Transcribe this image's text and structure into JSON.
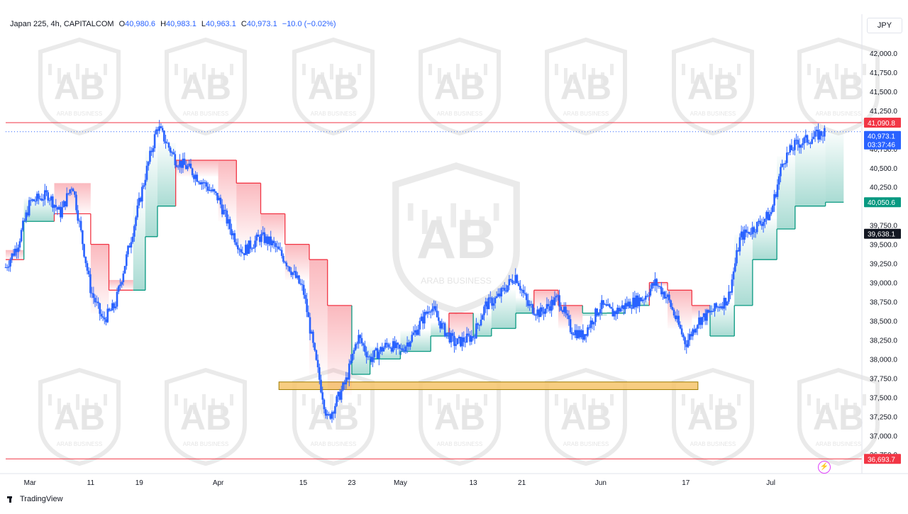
{
  "header": {
    "symbol": "Japan 225, 4h, CAPITALCOM",
    "open_label": "O",
    "open": "40,980.6",
    "high_label": "H",
    "high": "40,983.1",
    "low_label": "L",
    "low": "40,963.1",
    "close_label": "C",
    "close": "40,973.1",
    "change": "−10.0 (−0.02%)"
  },
  "currency": "JPY",
  "footer": {
    "brand": "TradingView"
  },
  "watermark": {
    "text": "ARAB BUSINESS"
  },
  "colors": {
    "candle": "#2962ff",
    "resistance_line": "#f23645",
    "support_zone_fill": "#f6c46b",
    "trail_down": "#f23645",
    "trail_up": "#089981",
    "last_price_bg": "#2962ff",
    "level_bg": "#131722"
  },
  "chart_data": {
    "type": "candlestick",
    "title": "Japan 225, 4h, CAPITALCOM",
    "x_tick_labels": [
      "Mar",
      "11",
      "19",
      "Apr",
      "15",
      "23",
      "May",
      "13",
      "21",
      "Jun",
      "17",
      "Jul"
    ],
    "y_ticks": [
      "42,000.0",
      "41,750.0",
      "41,500.0",
      "41,250.0",
      "40,750.0",
      "40,500.0",
      "40,250.0",
      "39,750.0",
      "39,500.0",
      "39,250.0",
      "39,000.0",
      "38,750.0",
      "38,500.0",
      "38,250.0",
      "38,000.0",
      "37,750.0",
      "37,500.0",
      "37,250.0",
      "37,000.0",
      "36,750.0"
    ],
    "ylim": [
      36650,
      42250
    ],
    "price_labels": [
      {
        "value": 41090.8,
        "text": "41,090.8",
        "role": "resistance"
      },
      {
        "value": 40973.1,
        "text": "40,973.1",
        "role": "last",
        "countdown": "03:37:46"
      },
      {
        "value": 40050.6,
        "text": "40,050.6",
        "role": "trailing-stop"
      },
      {
        "value": 39638.1,
        "text": "39,638.1",
        "role": "level"
      },
      {
        "value": 36693.7,
        "text": "36,693.7",
        "role": "support"
      }
    ],
    "horizontal_lines": [
      {
        "value": 41090.8,
        "style": "solid",
        "color": "#f23645"
      },
      {
        "value": 40973.1,
        "style": "dotted",
        "color": "#2962ff"
      },
      {
        "value": 36693.7,
        "style": "solid",
        "color": "#f23645"
      }
    ],
    "zones": [
      {
        "from": "2024-04-11",
        "to": "2024-06-19",
        "y_low": 37600,
        "y_high": 37700,
        "color": "#f6c46b"
      }
    ],
    "close_path": [
      [
        "2024-02-26",
        39200
      ],
      [
        "2024-02-28",
        39500
      ],
      [
        "2024-03-01",
        40050
      ],
      [
        "2024-03-04",
        40150
      ],
      [
        "2024-03-06",
        39900
      ],
      [
        "2024-03-08",
        40300
      ],
      [
        "2024-03-11",
        38900
      ],
      [
        "2024-03-13",
        38500
      ],
      [
        "2024-03-15",
        38700
      ],
      [
        "2024-03-18",
        39700
      ],
      [
        "2024-03-20",
        40400
      ],
      [
        "2024-03-22",
        41050
      ],
      [
        "2024-03-25",
        40600
      ],
      [
        "2024-03-27",
        40500
      ],
      [
        "2024-03-29",
        40350
      ],
      [
        "2024-04-01",
        40100
      ],
      [
        "2024-04-03",
        39700
      ],
      [
        "2024-04-05",
        39400
      ],
      [
        "2024-04-08",
        39600
      ],
      [
        "2024-04-10",
        39500
      ],
      [
        "2024-04-12",
        39300
      ],
      [
        "2024-04-15",
        38900
      ],
      [
        "2024-04-17",
        38000
      ],
      [
        "2024-04-19",
        37200
      ],
      [
        "2024-04-22",
        37700
      ],
      [
        "2024-04-24",
        38300
      ],
      [
        "2024-04-26",
        38000
      ],
      [
        "2024-04-29",
        38200
      ],
      [
        "2024-05-01",
        38100
      ],
      [
        "2024-05-03",
        38300
      ],
      [
        "2024-05-06",
        38700
      ],
      [
        "2024-05-08",
        38400
      ],
      [
        "2024-05-10",
        38200
      ],
      [
        "2024-05-13",
        38300
      ],
      [
        "2024-05-15",
        38700
      ],
      [
        "2024-05-17",
        38800
      ],
      [
        "2024-05-20",
        39100
      ],
      [
        "2024-05-22",
        38700
      ],
      [
        "2024-05-24",
        38600
      ],
      [
        "2024-05-27",
        38800
      ],
      [
        "2024-05-29",
        38400
      ],
      [
        "2024-05-31",
        38300
      ],
      [
        "2024-06-03",
        38700
      ],
      [
        "2024-06-05",
        38600
      ],
      [
        "2024-06-07",
        38700
      ],
      [
        "2024-06-10",
        38800
      ],
      [
        "2024-06-12",
        39000
      ],
      [
        "2024-06-14",
        38800
      ],
      [
        "2024-06-17",
        38200
      ],
      [
        "2024-06-19",
        38500
      ],
      [
        "2024-06-21",
        38600
      ],
      [
        "2024-06-24",
        38800
      ],
      [
        "2024-06-26",
        39600
      ],
      [
        "2024-06-28",
        39700
      ],
      [
        "2024-07-01",
        39900
      ],
      [
        "2024-07-03",
        40600
      ],
      [
        "2024-07-05",
        40800
      ],
      [
        "2024-07-08",
        40900
      ],
      [
        "2024-07-10",
        40973
      ]
    ],
    "trailing_stop": [
      [
        "2024-02-26",
        39300,
        "down"
      ],
      [
        "2024-02-29",
        39800,
        "up"
      ],
      [
        "2024-03-05",
        39900,
        "down"
      ],
      [
        "2024-03-11",
        39500,
        "down"
      ],
      [
        "2024-03-14",
        38900,
        "down"
      ],
      [
        "2024-03-18",
        38900,
        "up"
      ],
      [
        "2024-03-20",
        39600,
        "up"
      ],
      [
        "2024-03-22",
        40000,
        "up"
      ],
      [
        "2024-03-25",
        40600,
        "down"
      ],
      [
        "2024-04-01",
        40600,
        "down"
      ],
      [
        "2024-04-04",
        40300,
        "down"
      ],
      [
        "2024-04-08",
        39900,
        "down"
      ],
      [
        "2024-04-12",
        39500,
        "down"
      ],
      [
        "2024-04-16",
        39300,
        "down"
      ],
      [
        "2024-04-19",
        38700,
        "down"
      ],
      [
        "2024-04-23",
        37800,
        "up"
      ],
      [
        "2024-04-26",
        38000,
        "up"
      ],
      [
        "2024-05-01",
        38100,
        "up"
      ],
      [
        "2024-05-06",
        38300,
        "up"
      ],
      [
        "2024-05-09",
        38600,
        "down"
      ],
      [
        "2024-05-13",
        38300,
        "up"
      ],
      [
        "2024-05-16",
        38400,
        "up"
      ],
      [
        "2024-05-20",
        38600,
        "up"
      ],
      [
        "2024-05-23",
        38900,
        "down"
      ],
      [
        "2024-05-27",
        38700,
        "down"
      ],
      [
        "2024-05-31",
        38600,
        "up"
      ],
      [
        "2024-06-04",
        38600,
        "up"
      ],
      [
        "2024-06-07",
        38700,
        "up"
      ],
      [
        "2024-06-11",
        39000,
        "down"
      ],
      [
        "2024-06-14",
        38900,
        "down"
      ],
      [
        "2024-06-18",
        38700,
        "down"
      ],
      [
        "2024-06-21",
        38300,
        "up"
      ],
      [
        "2024-06-25",
        38700,
        "up"
      ],
      [
        "2024-06-28",
        39300,
        "up"
      ],
      [
        "2024-07-02",
        39700,
        "up"
      ],
      [
        "2024-07-05",
        40000,
        "up"
      ],
      [
        "2024-07-10",
        40050,
        "up"
      ]
    ]
  }
}
